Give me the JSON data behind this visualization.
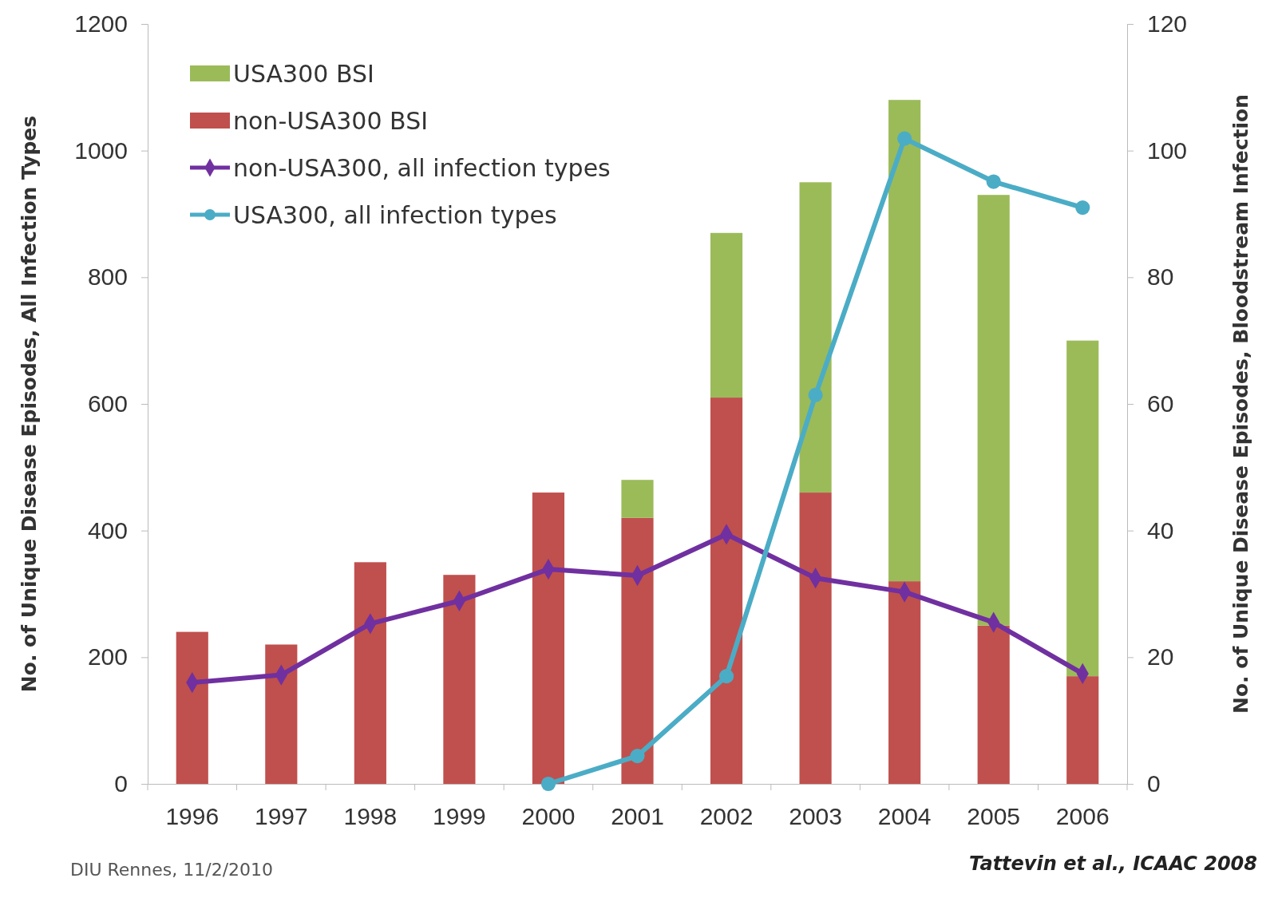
{
  "chart_data": {
    "type": "bar",
    "stacked": true,
    "xlabel": null,
    "ylabel": "No. of Unique Disease Episodes, All Infection Types",
    "y2label": "No. of Unique Disease Episodes, Bloodstream Infection",
    "categories": [
      "1996",
      "1997",
      "1998",
      "1999",
      "2000",
      "2001",
      "2002",
      "2003",
      "2004",
      "2005",
      "2006"
    ],
    "series": [
      {
        "name": "non-USA300 BSI",
        "axis": "y2",
        "color": "#c0504d",
        "values": [
          24,
          22,
          35,
          33,
          46,
          42,
          61,
          46,
          32,
          25,
          17
        ]
      },
      {
        "name": "USA300 BSI",
        "axis": "y2",
        "color": "#9bbb59",
        "values": [
          0,
          0,
          0,
          0,
          0,
          6,
          26,
          49,
          76,
          68,
          53
        ]
      },
      {
        "name": "non-USA300, all infection types",
        "type": "line",
        "axis": "y",
        "marker": "diamond",
        "color": "#7030a0",
        "values": [
          160,
          172,
          253,
          289,
          339,
          329,
          394,
          325,
          303,
          255,
          174
        ]
      },
      {
        "name": "USA300, all infection types",
        "type": "line",
        "axis": "y",
        "marker": "circle",
        "color": "#4bacc6",
        "values": [
          null,
          null,
          null,
          null,
          0,
          44,
          170,
          614,
          1019,
          951,
          910
        ]
      }
    ],
    "ylim": [
      0,
      1200
    ],
    "yticks": [
      0,
      200,
      400,
      600,
      800,
      1000,
      1200
    ],
    "y2lim": [
      0,
      120
    ],
    "y2ticks": [
      0,
      20,
      40,
      60,
      80,
      100,
      120
    ],
    "legend": "top left",
    "grid": false,
    "annotations": [
      "DIU Rennes, 11/2/2010",
      "Tattevin et al., ICAAC 2008"
    ]
  }
}
